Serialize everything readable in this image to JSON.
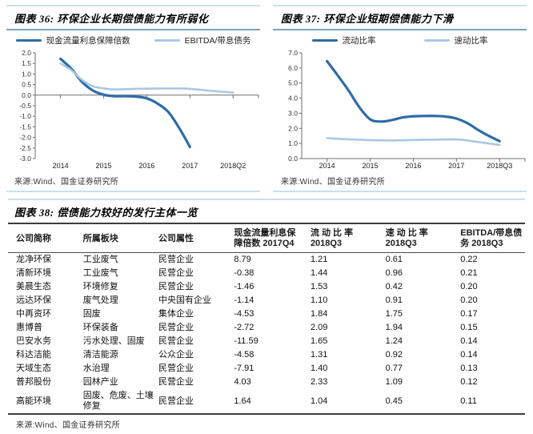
{
  "colors": {
    "dark_blue": "#2e6ca6",
    "light_blue": "#a9c7e3",
    "axis_gray": "#6e6e6e",
    "rule_light": "#c9e0ea",
    "rule_title": "#7da3b6",
    "rule_dark": "#3d3d3d"
  },
  "figure36": {
    "title": "图表 36: 环保企业长期偿债能力有所弱化",
    "source": "来源:Wind、国金证券研究所"
  },
  "figure37": {
    "title": "图表 37: 环保企业短期偿债能力下滑",
    "source": "来源:Wind、国金证券研究所"
  },
  "figure38": {
    "title": "图表 38: 偿债能力较好的发行主体一览",
    "source": "来源:Wind、国金证券研究所",
    "table": {
      "columns": [
        {
          "key": "company-name",
          "lines": [
            "公司简称"
          ]
        },
        {
          "key": "sector",
          "lines": [
            "所属板块"
          ]
        },
        {
          "key": "ownership",
          "lines": [
            "公司属性"
          ]
        },
        {
          "key": "cash-flow-interest-coverage",
          "lines": [
            "现金流量利息保",
            "障倍数 2017Q4"
          ]
        },
        {
          "key": "current-ratio",
          "lines": [
            "流 动 比 率",
            "2018Q3"
          ]
        },
        {
          "key": "quick-ratio",
          "lines": [
            "速 动 比 率",
            "2018Q3"
          ]
        },
        {
          "key": "ebitda-to-debt",
          "lines": [
            "EBITDA/带息债",
            "务 2018Q3"
          ]
        }
      ],
      "rows": [
        [
          "龙净环保",
          "工业废气",
          "民营企业",
          "8.79",
          "1.21",
          "0.61",
          "0.22"
        ],
        [
          "清新环境",
          "工业废气",
          "民营企业",
          "-0.38",
          "1.44",
          "0.96",
          "0.21"
        ],
        [
          "美晨生态",
          "环境修复",
          "民营企业",
          "-1.46",
          "1.53",
          "0.42",
          "0.20"
        ],
        [
          "远达环保",
          "废气处理",
          "中央国有企业",
          "-1.14",
          "1.10",
          "0.91",
          "0.20"
        ],
        [
          "中再资环",
          "固废",
          "集体企业",
          "-4.53",
          "1.84",
          "1.75",
          "0.17"
        ],
        [
          "惠博普",
          "环保装备",
          "民营企业",
          "-2.72",
          "2.09",
          "1.94",
          "0.15"
        ],
        [
          "巴安水务",
          "污水处理、固废",
          "民营企业",
          "-11.59",
          "1.65",
          "1.24",
          "0.14"
        ],
        [
          "科达洁能",
          "清洁能源",
          "公众企业",
          "-4.58",
          "1.31",
          "0.92",
          "0.14"
        ],
        [
          "天域生态",
          "水治理",
          "民营企业",
          "-7.91",
          "1.40",
          "0.77",
          "0.13"
        ],
        [
          "普邦股份",
          "园林产业",
          "民营企业",
          "4.03",
          "2.33",
          "1.09",
          "0.12"
        ],
        [
          "高能环境",
          "固废、危废、土壤修复",
          "民营企业",
          "1.64",
          "1.04",
          "0.45",
          "0.11"
        ]
      ]
    }
  },
  "chart_data": [
    {
      "type": "line",
      "title": "图表 36: 环保企业长期偿债能力有所弱化",
      "x_labels": [
        "2014",
        "2015",
        "2016",
        "2017",
        "2018Q2"
      ],
      "ylim": [
        -3.0,
        2.0
      ],
      "ytick_step": 0.5,
      "legend_position": "top",
      "grid": false,
      "series": [
        {
          "name": "现金流量利息保障倍数",
          "color": "#2e6ca6",
          "width": 3.2,
          "values_at_labels": [
            1.72,
            0.02,
            -0.15,
            -2.45,
            null
          ],
          "points": [
            [
              0,
              1.72
            ],
            [
              0.25,
              1.25
            ],
            [
              0.5,
              0.62
            ],
            [
              0.75,
              0.22
            ],
            [
              1,
              0.02
            ],
            [
              1.25,
              -0.05
            ],
            [
              1.5,
              -0.05
            ],
            [
              1.75,
              -0.07
            ],
            [
              2,
              -0.15
            ],
            [
              2.25,
              -0.4
            ],
            [
              2.5,
              -0.8
            ],
            [
              2.75,
              -1.55
            ],
            [
              3,
              -2.45
            ]
          ]
        },
        {
          "name": "EBITDA/带息债务",
          "color": "#a9c7e3",
          "width": 2.6,
          "values_at_labels": [
            1.5,
            0.32,
            0.3,
            0.3,
            0.12
          ],
          "points": [
            [
              0,
              1.5
            ],
            [
              0.25,
              1.18
            ],
            [
              0.5,
              0.72
            ],
            [
              0.75,
              0.42
            ],
            [
              1,
              0.32
            ],
            [
              1.25,
              0.27
            ],
            [
              1.75,
              0.3
            ],
            [
              2.25,
              0.31
            ],
            [
              2.75,
              0.31
            ],
            [
              3,
              0.3
            ],
            [
              3.5,
              0.2
            ],
            [
              4,
              0.12
            ]
          ]
        }
      ]
    },
    {
      "type": "line",
      "title": "图表 37: 环保企业短期偿债能力下滑",
      "x_labels": [
        "2014",
        "2015",
        "2016",
        "2017",
        "2018Q3"
      ],
      "ylim": [
        0.0,
        7.0
      ],
      "ytick_step": 1.0,
      "legend_position": "top",
      "grid": false,
      "series": [
        {
          "name": "流动比率",
          "color": "#2e6ca6",
          "width": 3.2,
          "values_at_labels": [
            6.45,
            2.6,
            2.8,
            2.65,
            1.15
          ],
          "points": [
            [
              0,
              6.45
            ],
            [
              0.25,
              5.5
            ],
            [
              0.5,
              4.5
            ],
            [
              0.75,
              3.4
            ],
            [
              1,
              2.6
            ],
            [
              1.25,
              2.45
            ],
            [
              1.5,
              2.55
            ],
            [
              1.75,
              2.72
            ],
            [
              2,
              2.8
            ],
            [
              2.25,
              2.82
            ],
            [
              2.5,
              2.82
            ],
            [
              2.75,
              2.78
            ],
            [
              3,
              2.65
            ],
            [
              3.25,
              2.35
            ],
            [
              3.5,
              1.9
            ],
            [
              3.75,
              1.5
            ],
            [
              4,
              1.15
            ]
          ]
        },
        {
          "name": "速动比率",
          "color": "#a9c7e3",
          "width": 2.6,
          "values_at_labels": [
            1.35,
            1.22,
            1.23,
            1.27,
            0.9
          ],
          "points": [
            [
              0,
              1.35
            ],
            [
              0.5,
              1.28
            ],
            [
              1,
              1.22
            ],
            [
              1.5,
              1.2
            ],
            [
              2,
              1.23
            ],
            [
              2.5,
              1.25
            ],
            [
              3,
              1.27
            ],
            [
              3.25,
              1.2
            ],
            [
              3.5,
              1.1
            ],
            [
              3.75,
              1.0
            ],
            [
              4,
              0.9
            ]
          ]
        }
      ]
    }
  ]
}
